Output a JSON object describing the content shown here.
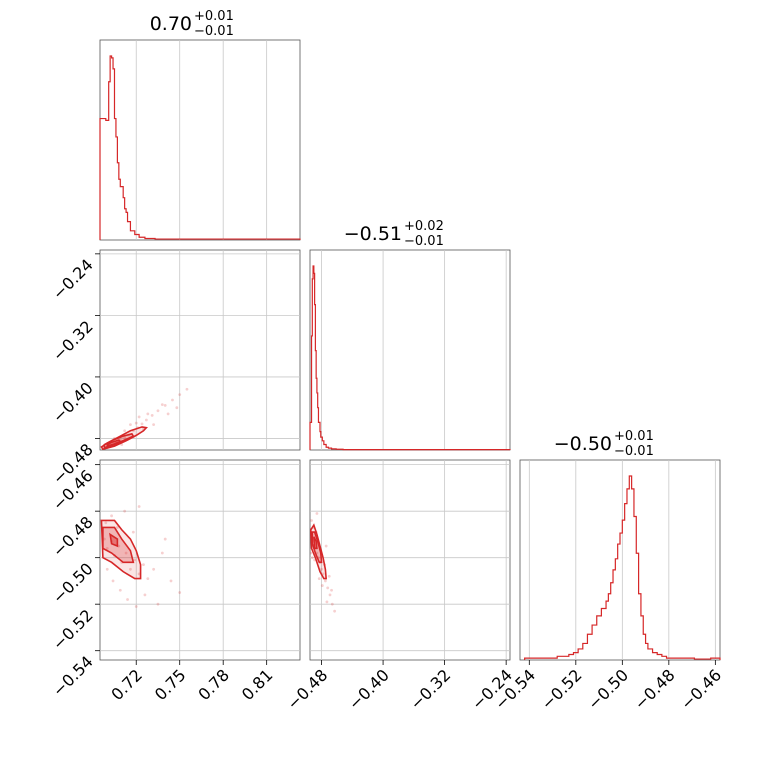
{
  "chart_data": {
    "type": "corner",
    "color": "#d62728",
    "grid": true,
    "parameters": [
      "p0",
      "p1",
      "p2"
    ],
    "titles": [
      {
        "value": "0.70",
        "plus": "+0.01",
        "minus": "−0.01"
      },
      {
        "value": "−0.51",
        "plus": "+0.02",
        "minus": "−0.01"
      },
      {
        "value": "−0.50",
        "plus": "+0.01",
        "minus": "−0.01"
      }
    ],
    "ranges": [
      [
        0.695,
        0.833
      ],
      [
        -0.495,
        -0.235
      ],
      [
        -0.544,
        -0.458
      ]
    ],
    "ticks": [
      {
        "values": [
          0.72,
          0.75,
          0.78,
          0.81
        ],
        "labels": [
          "0.72",
          "0.75",
          "0.78",
          "0.81"
        ]
      },
      {
        "values": [
          -0.48,
          -0.4,
          -0.32,
          -0.24
        ],
        "labels": [
          "−0.48",
          "−0.40",
          "−0.32",
          "−0.24"
        ]
      },
      {
        "values": [
          -0.54,
          -0.52,
          -0.5,
          -0.48,
          -0.46
        ],
        "labels": [
          "−0.54",
          "−0.52",
          "−0.50",
          "−0.48",
          "−0.46"
        ]
      }
    ],
    "histograms": [
      {
        "param": 0,
        "x": [
          0.695,
          0.699,
          0.701,
          0.702,
          0.703,
          0.704,
          0.705,
          0.706,
          0.707,
          0.708,
          0.709,
          0.711,
          0.712,
          0.713,
          0.714,
          0.716,
          0.719,
          0.722,
          0.726,
          0.733
        ],
        "counts": [
          0.66,
          0.65,
          0.86,
          1.0,
          0.99,
          0.93,
          0.66,
          0.56,
          0.42,
          0.33,
          0.29,
          0.23,
          0.17,
          0.15,
          0.1,
          0.05,
          0.03,
          0.015,
          0.008,
          0.005
        ]
      },
      {
        "param": 1,
        "x": [
          -0.495,
          -0.493,
          -0.492,
          -0.491,
          -0.49,
          -0.489,
          -0.488,
          -0.487,
          -0.486,
          -0.485,
          -0.484,
          -0.482,
          -0.481,
          -0.479,
          -0.477,
          -0.474,
          -0.471,
          -0.467,
          -0.461,
          -0.452
        ],
        "counts": [
          0.15,
          0.62,
          0.93,
          1.0,
          0.96,
          0.79,
          0.54,
          0.39,
          0.31,
          0.23,
          0.15,
          0.1,
          0.07,
          0.05,
          0.03,
          0.015,
          0.01,
          0.006,
          0.004,
          0.002
        ]
      },
      {
        "param": 2,
        "x": [
          -0.542,
          -0.537,
          -0.532,
          -0.528,
          -0.525,
          -0.523,
          -0.521,
          -0.519,
          -0.517,
          -0.515,
          -0.513,
          -0.511,
          -0.509,
          -0.507,
          -0.506,
          -0.505,
          -0.504,
          -0.503,
          -0.502,
          -0.501,
          -0.5,
          -0.499,
          -0.498,
          -0.497,
          -0.496,
          -0.495,
          -0.494,
          -0.493,
          -0.492,
          -0.491,
          -0.49,
          -0.489,
          -0.487,
          -0.485,
          -0.483,
          -0.481,
          -0.478,
          -0.474,
          -0.469,
          -0.462
        ],
        "counts": [
          0.01,
          0.01,
          0.01,
          0.02,
          0.02,
          0.03,
          0.04,
          0.06,
          0.09,
          0.14,
          0.19,
          0.24,
          0.28,
          0.32,
          0.36,
          0.42,
          0.49,
          0.55,
          0.63,
          0.69,
          0.76,
          0.85,
          0.93,
          1.0,
          0.93,
          0.78,
          0.58,
          0.36,
          0.24,
          0.14,
          0.09,
          0.06,
          0.04,
          0.03,
          0.02,
          0.01,
          0.01,
          0.01,
          0.005,
          0.01
        ]
      }
    ],
    "scatter_2d": [
      {
        "x_param": 0,
        "y_param": 1,
        "points": [
          [
            0.7,
            -0.492
          ],
          [
            0.703,
            -0.49
          ],
          [
            0.706,
            -0.486
          ],
          [
            0.709,
            -0.482
          ],
          [
            0.712,
            -0.479
          ],
          [
            0.715,
            -0.475
          ],
          [
            0.718,
            -0.47
          ],
          [
            0.721,
            -0.466
          ],
          [
            0.724,
            -0.461
          ],
          [
            0.727,
            -0.456
          ],
          [
            0.731,
            -0.45
          ],
          [
            0.735,
            -0.444
          ],
          [
            0.74,
            -0.437
          ],
          [
            0.745,
            -0.43
          ],
          [
            0.75,
            -0.423
          ],
          [
            0.755,
            -0.416
          ],
          [
            0.705,
            -0.48
          ],
          [
            0.712,
            -0.47
          ],
          [
            0.72,
            -0.46
          ],
          [
            0.728,
            -0.448
          ],
          [
            0.738,
            -0.436
          ],
          [
            0.71,
            -0.488
          ],
          [
            0.718,
            -0.478
          ],
          [
            0.725,
            -0.468
          ],
          [
            0.732,
            -0.462
          ],
          [
            0.742,
            -0.448
          ],
          [
            0.748,
            -0.44
          ],
          [
            0.716,
            -0.462
          ],
          [
            0.722,
            -0.452
          ],
          [
            0.702,
            -0.485
          ]
        ]
      },
      {
        "x_param": 0,
        "y_param": 2,
        "points": [
          [
            0.698,
            -0.492
          ],
          [
            0.7,
            -0.496
          ],
          [
            0.703,
            -0.493
          ],
          [
            0.705,
            -0.499
          ],
          [
            0.708,
            -0.495
          ],
          [
            0.71,
            -0.502
          ],
          [
            0.713,
            -0.498
          ],
          [
            0.716,
            -0.505
          ],
          [
            0.719,
            -0.501
          ],
          [
            0.722,
            -0.507
          ],
          [
            0.725,
            -0.503
          ],
          [
            0.728,
            -0.509
          ],
          [
            0.732,
            -0.505
          ],
          [
            0.738,
            -0.498
          ],
          [
            0.744,
            -0.51
          ],
          [
            0.75,
            -0.515
          ],
          [
            0.699,
            -0.485
          ],
          [
            0.703,
            -0.482
          ],
          [
            0.707,
            -0.487
          ],
          [
            0.712,
            -0.48
          ],
          [
            0.718,
            -0.489
          ],
          [
            0.7,
            -0.505
          ],
          [
            0.704,
            -0.51
          ],
          [
            0.709,
            -0.514
          ],
          [
            0.714,
            -0.518
          ],
          [
            0.72,
            -0.521
          ],
          [
            0.726,
            -0.516
          ],
          [
            0.735,
            -0.52
          ],
          [
            0.74,
            -0.492
          ],
          [
            0.722,
            -0.478
          ]
        ]
      },
      {
        "x_param": 1,
        "y_param": 2,
        "points": [
          [
            -0.494,
            -0.49
          ],
          [
            -0.492,
            -0.493
          ],
          [
            -0.49,
            -0.492
          ],
          [
            -0.488,
            -0.496
          ],
          [
            -0.486,
            -0.498
          ],
          [
            -0.484,
            -0.5
          ],
          [
            -0.482,
            -0.502
          ],
          [
            -0.48,
            -0.505
          ],
          [
            -0.478,
            -0.507
          ],
          [
            -0.475,
            -0.51
          ],
          [
            -0.472,
            -0.513
          ],
          [
            -0.469,
            -0.516
          ],
          [
            -0.466,
            -0.52
          ],
          [
            -0.463,
            -0.523
          ],
          [
            -0.493,
            -0.484
          ],
          [
            -0.491,
            -0.487
          ],
          [
            -0.489,
            -0.501
          ],
          [
            -0.487,
            -0.489
          ],
          [
            -0.485,
            -0.493
          ],
          [
            -0.483,
            -0.509
          ],
          [
            -0.481,
            -0.497
          ],
          [
            -0.479,
            -0.512
          ],
          [
            -0.476,
            -0.503
          ],
          [
            -0.473,
            -0.519
          ],
          [
            -0.47,
            -0.508
          ],
          [
            -0.467,
            -0.514
          ],
          [
            -0.494,
            -0.498
          ],
          [
            -0.492,
            -0.5
          ],
          [
            -0.474,
            -0.495
          ],
          [
            -0.486,
            -0.481
          ]
        ]
      }
    ],
    "contours_2d": [
      {
        "x_param": 0,
        "y_param": 1,
        "levels": [
          [
            [
              0.697,
              -0.494
            ],
            [
              0.705,
              -0.49
            ],
            [
              0.713,
              -0.483
            ],
            [
              0.72,
              -0.476
            ],
            [
              0.725,
              -0.47
            ],
            [
              0.727,
              -0.466
            ],
            [
              0.724,
              -0.465
            ],
            [
              0.716,
              -0.47
            ],
            [
              0.708,
              -0.478
            ],
            [
              0.7,
              -0.486
            ],
            [
              0.696,
              -0.491
            ],
            [
              0.697,
              -0.494
            ]
          ],
          [
            [
              0.698,
              -0.492
            ],
            [
              0.705,
              -0.488
            ],
            [
              0.712,
              -0.482
            ],
            [
              0.718,
              -0.477
            ],
            [
              0.717,
              -0.474
            ],
            [
              0.711,
              -0.477
            ],
            [
              0.704,
              -0.482
            ],
            [
              0.698,
              -0.488
            ],
            [
              0.698,
              -0.492
            ]
          ],
          [
            [
              0.7,
              -0.49
            ],
            [
              0.705,
              -0.487
            ],
            [
              0.709,
              -0.484
            ],
            [
              0.708,
              -0.482
            ],
            [
              0.703,
              -0.485
            ],
            [
              0.7,
              -0.488
            ],
            [
              0.7,
              -0.49
            ]
          ]
        ]
      },
      {
        "x_param": 0,
        "y_param": 2,
        "levels": [
          [
            [
              0.696,
              -0.484
            ],
            [
              0.705,
              -0.484
            ],
            [
              0.71,
              -0.488
            ],
            [
              0.716,
              -0.492
            ],
            [
              0.72,
              -0.497
            ],
            [
              0.723,
              -0.503
            ],
            [
              0.723,
              -0.509
            ],
            [
              0.719,
              -0.509
            ],
            [
              0.711,
              -0.506
            ],
            [
              0.703,
              -0.502
            ],
            [
              0.697,
              -0.5
            ],
            [
              0.696,
              -0.484
            ]
          ],
          [
            [
              0.697,
              -0.487
            ],
            [
              0.705,
              -0.487
            ],
            [
              0.71,
              -0.492
            ],
            [
              0.716,
              -0.497
            ],
            [
              0.718,
              -0.502
            ],
            [
              0.711,
              -0.502
            ],
            [
              0.703,
              -0.498
            ],
            [
              0.697,
              -0.496
            ],
            [
              0.697,
              -0.487
            ]
          ],
          [
            [
              0.702,
              -0.49
            ],
            [
              0.707,
              -0.492
            ],
            [
              0.707,
              -0.495
            ],
            [
              0.703,
              -0.494
            ],
            [
              0.702,
              -0.49
            ]
          ]
        ]
      },
      {
        "x_param": 1,
        "y_param": 2,
        "levels": [
          [
            [
              -0.494,
              -0.488
            ],
            [
              -0.49,
              -0.486
            ],
            [
              -0.486,
              -0.49
            ],
            [
              -0.482,
              -0.495
            ],
            [
              -0.478,
              -0.5
            ],
            [
              -0.475,
              -0.505
            ],
            [
              -0.474,
              -0.509
            ],
            [
              -0.477,
              -0.509
            ],
            [
              -0.482,
              -0.506
            ],
            [
              -0.488,
              -0.5
            ],
            [
              -0.493,
              -0.496
            ],
            [
              -0.494,
              -0.488
            ]
          ],
          [
            [
              -0.492,
              -0.489
            ],
            [
              -0.489,
              -0.489
            ],
            [
              -0.485,
              -0.493
            ],
            [
              -0.481,
              -0.498
            ],
            [
              -0.48,
              -0.502
            ],
            [
              -0.483,
              -0.502
            ],
            [
              -0.488,
              -0.498
            ],
            [
              -0.492,
              -0.494
            ],
            [
              -0.492,
              -0.489
            ]
          ],
          [
            [
              -0.49,
              -0.491
            ],
            [
              -0.487,
              -0.493
            ],
            [
              -0.486,
              -0.496
            ],
            [
              -0.489,
              -0.496
            ],
            [
              -0.49,
              -0.491
            ]
          ]
        ]
      }
    ]
  }
}
